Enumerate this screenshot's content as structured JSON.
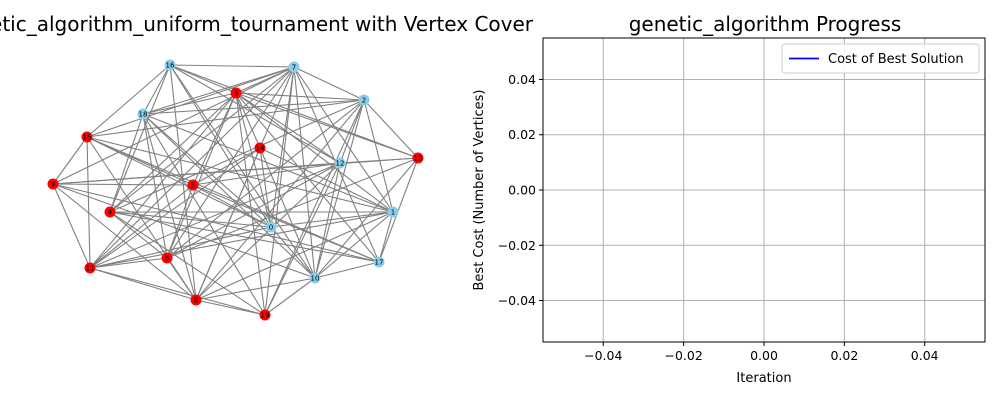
{
  "titles": {
    "graph": "ph_genetic_algorithm_uniform_tournament with Vertex Cover",
    "progress": "genetic_algorithm Progress"
  },
  "colors": {
    "cover_node": "#ff0000",
    "other_node": "#87ceeb",
    "edge": "#808080",
    "line": "#0000ff",
    "grid": "#b0b0b0"
  },
  "chart_data": [
    {
      "type": "network",
      "title": "ph_genetic_algorithm_uniform_tournament with Vertex Cover",
      "nodes": [
        {
          "id": "0",
          "in_cover": false
        },
        {
          "id": "1",
          "in_cover": false
        },
        {
          "id": "2",
          "in_cover": false
        },
        {
          "id": "3",
          "in_cover": true
        },
        {
          "id": "4",
          "in_cover": true
        },
        {
          "id": "5",
          "in_cover": true
        },
        {
          "id": "6",
          "in_cover": true
        },
        {
          "id": "7",
          "in_cover": false
        },
        {
          "id": "8",
          "in_cover": true
        },
        {
          "id": "9",
          "in_cover": true
        },
        {
          "id": "10",
          "in_cover": false
        },
        {
          "id": "11",
          "in_cover": true
        },
        {
          "id": "12",
          "in_cover": false
        },
        {
          "id": "13",
          "in_cover": true
        },
        {
          "id": "14",
          "in_cover": true
        },
        {
          "id": "15",
          "in_cover": true
        },
        {
          "id": "16",
          "in_cover": false
        },
        {
          "id": "17",
          "in_cover": false
        },
        {
          "id": "18",
          "in_cover": false
        },
        {
          "id": "19",
          "in_cover": true
        }
      ]
    },
    {
      "type": "line",
      "title": "genetic_algorithm Progress",
      "xlabel": "Iteration",
      "ylabel": "Best Cost (Number of Vertices)",
      "series": [
        {
          "name": "Cost of Best Solution",
          "x": [],
          "y": []
        }
      ],
      "xlim": [
        -0.055,
        0.055
      ],
      "ylim": [
        -0.055,
        0.055
      ],
      "xticks": [
        "−0.04",
        "−0.02",
        "0.00",
        "0.02",
        "0.04"
      ],
      "yticks": [
        "−0.04",
        "−0.02",
        "0.00",
        "0.02",
        "0.04"
      ],
      "grid": true,
      "legend": "upper right"
    }
  ]
}
